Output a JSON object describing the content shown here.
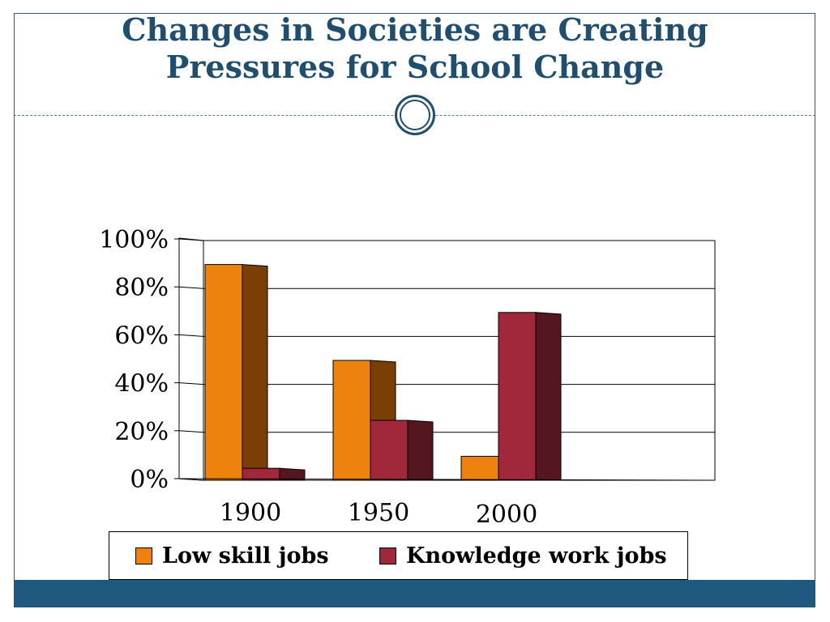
{
  "slide": {
    "title_line1": "Changes in Societies are Creating",
    "title_line2": "Pressures for School Change"
  },
  "colors": {
    "title": "#1f4e6e",
    "bar_bottom": "#1f5a7e",
    "low_skill_front": "#ee820f",
    "low_skill_side": "#7a3f05",
    "knowledge_front": "#a0283a",
    "knowledge_side": "#55161f"
  },
  "chart_data": {
    "type": "bar",
    "title": "",
    "xlabel": "",
    "ylabel": "",
    "categories": [
      "1900",
      "1950",
      "2000"
    ],
    "series": [
      {
        "name": "Low skill jobs",
        "values": [
          90,
          50,
          10
        ]
      },
      {
        "name": "Knowledge work jobs",
        "values": [
          5,
          25,
          70
        ]
      }
    ],
    "ylim": [
      0,
      100
    ],
    "yticks": [
      "0%",
      "20%",
      "40%",
      "60%",
      "80%",
      "100%"
    ],
    "grid": true,
    "style": "3d",
    "legend_position": "bottom"
  }
}
